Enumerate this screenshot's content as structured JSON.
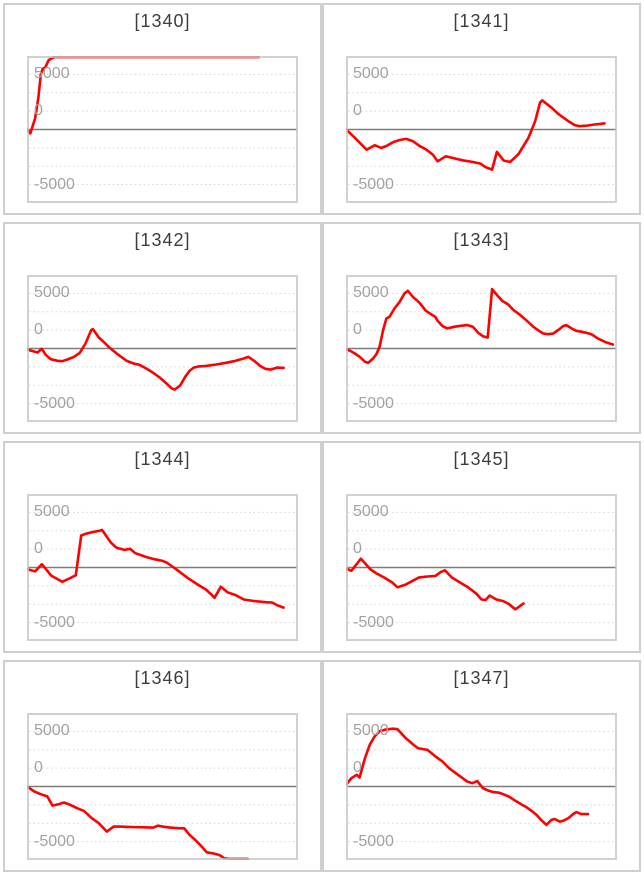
{
  "style": {
    "line_color": "#ff0000",
    "grid_color": "#d8d8d8",
    "zero_line_color": "#7d7d7d",
    "plot_border_color": "#c5c5c5",
    "axis_label_color": "#a2a2a2",
    "title_color": "#3d3d3d",
    "card_border_color": "#cfcfcf",
    "page_background": "#ffffff"
  },
  "chart_data": [
    {
      "type": "line",
      "title": "[1340]",
      "ylabels": [
        "5000",
        "0",
        "-5000"
      ],
      "yticks": [
        5000,
        0,
        -5000
      ],
      "ylim": [
        -6667,
        6667
      ],
      "grid": "dotted horizontal, solid dark zero line",
      "legend": "none",
      "series_color": "#ff0000",
      "points": [
        [
          0,
          0
        ],
        [
          0.012,
          -350
        ],
        [
          0.03,
          1000
        ],
        [
          0.042,
          2900
        ],
        [
          0.051,
          5000
        ],
        [
          0.058,
          5500
        ],
        [
          0.068,
          5650
        ],
        [
          0.08,
          6300
        ],
        [
          0.1,
          7200
        ],
        [
          0.855,
          7200
        ]
      ]
    },
    {
      "type": "line",
      "title": "[1341]",
      "ylabels": [
        "5000",
        "0",
        "-5000"
      ],
      "yticks": [
        5000,
        0,
        -5000
      ],
      "ylim": [
        -6667,
        6667
      ],
      "grid": "dotted horizontal, solid dark zero line",
      "legend": "none",
      "series_color": "#ff0000",
      "points": [
        [
          0,
          0
        ],
        [
          0.033,
          -750
        ],
        [
          0.076,
          -1830
        ],
        [
          0.106,
          -1420
        ],
        [
          0.13,
          -1670
        ],
        [
          0.149,
          -1500
        ],
        [
          0.173,
          -1150
        ],
        [
          0.198,
          -950
        ],
        [
          0.222,
          -850
        ],
        [
          0.246,
          -1050
        ],
        [
          0.271,
          -1480
        ],
        [
          0.295,
          -1800
        ],
        [
          0.32,
          -2270
        ],
        [
          0.338,
          -2880
        ],
        [
          0.368,
          -2430
        ],
        [
          0.393,
          -2580
        ],
        [
          0.43,
          -2790
        ],
        [
          0.466,
          -2940
        ],
        [
          0.496,
          -3090
        ],
        [
          0.515,
          -3420
        ],
        [
          0.539,
          -3640
        ],
        [
          0.557,
          -2030
        ],
        [
          0.582,
          -2820
        ],
        [
          0.606,
          -2940
        ],
        [
          0.637,
          -2210
        ],
        [
          0.673,
          -760
        ],
        [
          0.698,
          760
        ],
        [
          0.716,
          2430
        ],
        [
          0.724,
          2640
        ],
        [
          0.759,
          1970
        ],
        [
          0.783,
          1420
        ],
        [
          0.82,
          760
        ],
        [
          0.844,
          400
        ],
        [
          0.862,
          300
        ],
        [
          0.893,
          360
        ],
        [
          0.917,
          450
        ],
        [
          0.954,
          550
        ]
      ]
    },
    {
      "type": "line",
      "title": "[1342]",
      "ylabels": [
        "5000",
        "0",
        "-5000"
      ],
      "yticks": [
        5000,
        0,
        -5000
      ],
      "ylim": [
        -6667,
        6667
      ],
      "grid": "dotted horizontal, solid dark zero line",
      "legend": "none",
      "series_color": "#ff0000",
      "points": [
        [
          0,
          -90
        ],
        [
          0.021,
          -240
        ],
        [
          0.039,
          -360
        ],
        [
          0.054,
          -30
        ],
        [
          0.07,
          -600
        ],
        [
          0.088,
          -970
        ],
        [
          0.112,
          -1120
        ],
        [
          0.13,
          -1150
        ],
        [
          0.149,
          -1000
        ],
        [
          0.173,
          -760
        ],
        [
          0.195,
          -390
        ],
        [
          0.216,
          455
        ],
        [
          0.237,
          1670
        ],
        [
          0.243,
          1760
        ],
        [
          0.265,
          1000
        ],
        [
          0.283,
          600
        ],
        [
          0.305,
          60
        ],
        [
          0.32,
          -240
        ],
        [
          0.344,
          -700
        ],
        [
          0.368,
          -1120
        ],
        [
          0.393,
          -1360
        ],
        [
          0.415,
          -1480
        ],
        [
          0.441,
          -1820
        ],
        [
          0.466,
          -2210
        ],
        [
          0.49,
          -2640
        ],
        [
          0.515,
          -3180
        ],
        [
          0.533,
          -3600
        ],
        [
          0.545,
          -3730
        ],
        [
          0.566,
          -3330
        ],
        [
          0.585,
          -2520
        ],
        [
          0.6,
          -2030
        ],
        [
          0.615,
          -1730
        ],
        [
          0.63,
          -1640
        ],
        [
          0.661,
          -1580
        ],
        [
          0.698,
          -1450
        ],
        [
          0.734,
          -1300
        ],
        [
          0.77,
          -1120
        ],
        [
          0.801,
          -900
        ],
        [
          0.817,
          -760
        ],
        [
          0.838,
          -1120
        ],
        [
          0.862,
          -1610
        ],
        [
          0.88,
          -1850
        ],
        [
          0.899,
          -1910
        ],
        [
          0.923,
          -1730
        ],
        [
          0.947,
          -1760
        ]
      ]
    },
    {
      "type": "line",
      "title": "[1343]",
      "ylabels": [
        "5000",
        "0",
        "-5000"
      ],
      "yticks": [
        5000,
        0,
        -5000
      ],
      "ylim": [
        -6667,
        6667
      ],
      "grid": "dotted horizontal, solid dark zero line",
      "legend": "none",
      "series_color": "#ff0000",
      "points": [
        [
          0,
          -90
        ],
        [
          0.015,
          -210
        ],
        [
          0.033,
          -450
        ],
        [
          0.051,
          -760
        ],
        [
          0.07,
          -1210
        ],
        [
          0.082,
          -1300
        ],
        [
          0.1,
          -910
        ],
        [
          0.112,
          -520
        ],
        [
          0.124,
          150
        ],
        [
          0.137,
          1670
        ],
        [
          0.149,
          2730
        ],
        [
          0.161,
          2880
        ],
        [
          0.179,
          3640
        ],
        [
          0.198,
          4240
        ],
        [
          0.216,
          5000
        ],
        [
          0.228,
          5240
        ],
        [
          0.246,
          4700
        ],
        [
          0.271,
          4150
        ],
        [
          0.295,
          3420
        ],
        [
          0.313,
          3120
        ],
        [
          0.329,
          2880
        ],
        [
          0.338,
          2520
        ],
        [
          0.356,
          2030
        ],
        [
          0.374,
          1820
        ],
        [
          0.399,
          1970
        ],
        [
          0.423,
          2060
        ],
        [
          0.448,
          2120
        ],
        [
          0.468,
          1970
        ],
        [
          0.488,
          1420
        ],
        [
          0.505,
          1120
        ],
        [
          0.523,
          1000
        ],
        [
          0.539,
          5390
        ],
        [
          0.557,
          4850
        ],
        [
          0.576,
          4330
        ],
        [
          0.598,
          4000
        ],
        [
          0.618,
          3480
        ],
        [
          0.643,
          3030
        ],
        [
          0.667,
          2520
        ],
        [
          0.691,
          1970
        ],
        [
          0.712,
          1610
        ],
        [
          0.728,
          1360
        ],
        [
          0.746,
          1300
        ],
        [
          0.765,
          1360
        ],
        [
          0.783,
          1670
        ],
        [
          0.801,
          2030
        ],
        [
          0.813,
          2120
        ],
        [
          0.832,
          1820
        ],
        [
          0.85,
          1610
        ],
        [
          0.868,
          1520
        ],
        [
          0.887,
          1420
        ],
        [
          0.905,
          1300
        ],
        [
          0.93,
          900
        ],
        [
          0.96,
          550
        ],
        [
          0.985,
          360
        ]
      ]
    },
    {
      "type": "line",
      "title": "[1344]",
      "ylabels": [
        "5000",
        "0",
        "-5000"
      ],
      "yticks": [
        5000,
        0,
        -5000
      ],
      "ylim": [
        -6667,
        6667
      ],
      "grid": "dotted horizontal, solid dark zero line",
      "legend": "none",
      "series_color": "#ff0000",
      "points": [
        [
          0,
          -150
        ],
        [
          0.03,
          -350
        ],
        [
          0.055,
          300
        ],
        [
          0.09,
          -750
        ],
        [
          0.13,
          -1300
        ],
        [
          0.16,
          -950
        ],
        [
          0.18,
          -700
        ],
        [
          0.2,
          2900
        ],
        [
          0.215,
          3050
        ],
        [
          0.24,
          3200
        ],
        [
          0.27,
          3350
        ],
        [
          0.277,
          3400
        ],
        [
          0.31,
          2250
        ],
        [
          0.33,
          1800
        ],
        [
          0.36,
          1600
        ],
        [
          0.38,
          1700
        ],
        [
          0.4,
          1300
        ],
        [
          0.44,
          950
        ],
        [
          0.47,
          750
        ],
        [
          0.5,
          600
        ],
        [
          0.515,
          450
        ],
        [
          0.55,
          -150
        ],
        [
          0.59,
          -900
        ],
        [
          0.63,
          -1550
        ],
        [
          0.66,
          -2000
        ],
        [
          0.68,
          -2450
        ],
        [
          0.692,
          -2750
        ],
        [
          0.715,
          -1750
        ],
        [
          0.74,
          -2250
        ],
        [
          0.77,
          -2500
        ],
        [
          0.8,
          -2900
        ],
        [
          0.84,
          -3050
        ],
        [
          0.88,
          -3150
        ],
        [
          0.905,
          -3180
        ],
        [
          0.923,
          -3420
        ],
        [
          0.947,
          -3640
        ]
      ]
    },
    {
      "type": "line",
      "title": "[1345]",
      "ylabels": [
        "5000",
        "0",
        "-5000"
      ],
      "yticks": [
        5000,
        0,
        -5000
      ],
      "ylim": [
        -6667,
        6667
      ],
      "grid": "dotted horizontal, solid dark zero line",
      "legend": "none",
      "series_color": "#ff0000",
      "points": [
        [
          0,
          -100
        ],
        [
          0.02,
          -300
        ],
        [
          0.055,
          800
        ],
        [
          0.09,
          -150
        ],
        [
          0.11,
          -500
        ],
        [
          0.14,
          -900
        ],
        [
          0.17,
          -1350
        ],
        [
          0.19,
          -1800
        ],
        [
          0.22,
          -1550
        ],
        [
          0.25,
          -1150
        ],
        [
          0.27,
          -900
        ],
        [
          0.3,
          -820
        ],
        [
          0.33,
          -760
        ],
        [
          0.35,
          -400
        ],
        [
          0.365,
          -250
        ],
        [
          0.39,
          -900
        ],
        [
          0.42,
          -1350
        ],
        [
          0.45,
          -1800
        ],
        [
          0.48,
          -2350
        ],
        [
          0.5,
          -2900
        ],
        [
          0.515,
          -2950
        ],
        [
          0.53,
          -2550
        ],
        [
          0.555,
          -2900
        ],
        [
          0.58,
          -3050
        ],
        [
          0.6,
          -3300
        ],
        [
          0.625,
          -3790
        ],
        [
          0.655,
          -3270
        ]
      ]
    },
    {
      "type": "line",
      "title": "[1346]",
      "ylabels": [
        "5000",
        "0",
        "-5000"
      ],
      "yticks": [
        5000,
        0,
        -5000
      ],
      "ylim": [
        -6667,
        6667
      ],
      "grid": "dotted horizontal, solid dark zero line",
      "legend": "none",
      "series_color": "#ff0000",
      "points": [
        [
          0,
          0
        ],
        [
          0.027,
          -450
        ],
        [
          0.05,
          -700
        ],
        [
          0.075,
          -900
        ],
        [
          0.094,
          -1730
        ],
        [
          0.118,
          -1600
        ],
        [
          0.137,
          -1450
        ],
        [
          0.16,
          -1670
        ],
        [
          0.185,
          -1970
        ],
        [
          0.21,
          -2210
        ],
        [
          0.24,
          -2880
        ],
        [
          0.265,
          -3330
        ],
        [
          0.283,
          -3790
        ],
        [
          0.295,
          -4090
        ],
        [
          0.32,
          -3640
        ],
        [
          0.344,
          -3640
        ],
        [
          0.38,
          -3670
        ],
        [
          0.43,
          -3700
        ],
        [
          0.466,
          -3730
        ],
        [
          0.484,
          -3550
        ],
        [
          0.5,
          -3640
        ],
        [
          0.527,
          -3730
        ],
        [
          0.563,
          -3790
        ],
        [
          0.58,
          -3790
        ],
        [
          0.6,
          -4390
        ],
        [
          0.625,
          -4940
        ],
        [
          0.65,
          -5600
        ],
        [
          0.663,
          -5970
        ],
        [
          0.685,
          -6060
        ],
        [
          0.71,
          -6210
        ],
        [
          0.728,
          -6510
        ],
        [
          0.746,
          -6900
        ],
        [
          0.815,
          -6900
        ]
      ]
    },
    {
      "type": "line",
      "title": "[1347]",
      "ylabels": [
        "5000",
        "0",
        "-5000"
      ],
      "yticks": [
        5000,
        0,
        -5000
      ],
      "ylim": [
        -6667,
        6667
      ],
      "grid": "dotted horizontal, solid dark zero line",
      "legend": "none",
      "series_color": "#ff0000",
      "points": [
        [
          0,
          150
        ],
        [
          0.02,
          760
        ],
        [
          0.04,
          1060
        ],
        [
          0.05,
          820
        ],
        [
          0.07,
          2580
        ],
        [
          0.088,
          3790
        ],
        [
          0.106,
          4545
        ],
        [
          0.124,
          5000
        ],
        [
          0.143,
          5150
        ],
        [
          0.173,
          5245
        ],
        [
          0.19,
          5200
        ],
        [
          0.22,
          4400
        ],
        [
          0.246,
          3850
        ],
        [
          0.265,
          3480
        ],
        [
          0.283,
          3390
        ],
        [
          0.3,
          3330
        ],
        [
          0.33,
          2730
        ],
        [
          0.356,
          2270
        ],
        [
          0.38,
          1670
        ],
        [
          0.405,
          1210
        ],
        [
          0.43,
          760
        ],
        [
          0.447,
          455
        ],
        [
          0.466,
          300
        ],
        [
          0.484,
          500
        ],
        [
          0.505,
          -150
        ],
        [
          0.527,
          -390
        ],
        [
          0.545,
          -520
        ],
        [
          0.563,
          -550
        ],
        [
          0.58,
          -700
        ],
        [
          0.6,
          -900
        ],
        [
          0.625,
          -1300
        ],
        [
          0.65,
          -1670
        ],
        [
          0.667,
          -1900
        ],
        [
          0.685,
          -2210
        ],
        [
          0.703,
          -2580
        ],
        [
          0.72,
          -3030
        ],
        [
          0.74,
          -3480
        ],
        [
          0.758,
          -3030
        ],
        [
          0.77,
          -2950
        ],
        [
          0.789,
          -3180
        ],
        [
          0.8,
          -3120
        ],
        [
          0.82,
          -2880
        ],
        [
          0.838,
          -2500
        ],
        [
          0.85,
          -2320
        ],
        [
          0.868,
          -2500
        ],
        [
          0.893,
          -2500
        ]
      ]
    }
  ]
}
